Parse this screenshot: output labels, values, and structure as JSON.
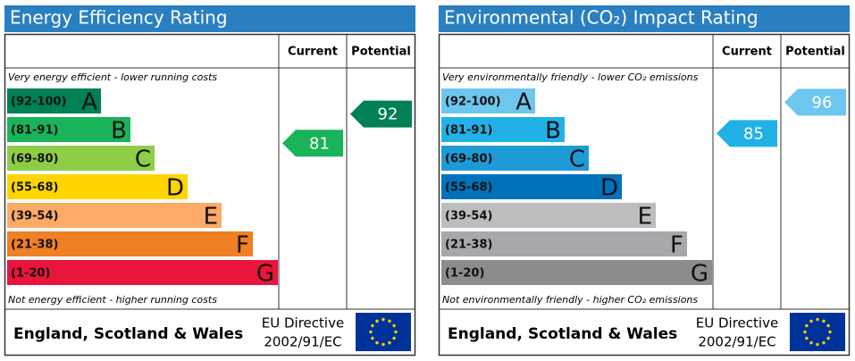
{
  "chart_data": [
    {
      "type": "epc",
      "title": "Energy Efficiency Rating",
      "columns": [
        "Current",
        "Potential"
      ],
      "top_note": "Very energy efficient - lower running costs",
      "bottom_note": "Not energy efficient - higher running costs",
      "bands": [
        {
          "range": "(92-100)",
          "letter": "A",
          "color": "#008054"
        },
        {
          "range": "(81-91)",
          "letter": "B",
          "color": "#19b459"
        },
        {
          "range": "(69-80)",
          "letter": "C",
          "color": "#8dce46"
        },
        {
          "range": "(55-68)",
          "letter": "D",
          "color": "#ffd500"
        },
        {
          "range": "(39-54)",
          "letter": "E",
          "color": "#fcaa65"
        },
        {
          "range": "(21-38)",
          "letter": "F",
          "color": "#ef8023"
        },
        {
          "range": "(1-20)",
          "letter": "G",
          "color": "#e9153b"
        }
      ],
      "current": 81,
      "potential": 92,
      "footer": {
        "region": "England, Scotland & Wales",
        "directive": [
          "EU Directive",
          "2002/91/EC"
        ]
      }
    },
    {
      "type": "epc",
      "title": "Environmental (CO₂) Impact Rating",
      "columns": [
        "Current",
        "Potential"
      ],
      "top_note": "Very environmentally friendly - lower CO₂ emissions",
      "bottom_note": "Not environmentally friendly - higher CO₂ emissions",
      "bands": [
        {
          "range": "(92-100)",
          "letter": "A",
          "color": "#6dc6ee"
        },
        {
          "range": "(81-91)",
          "letter": "B",
          "color": "#22b1e6"
        },
        {
          "range": "(69-80)",
          "letter": "C",
          "color": "#1e9bd7"
        },
        {
          "range": "(55-68)",
          "letter": "D",
          "color": "#0072bb"
        },
        {
          "range": "(39-54)",
          "letter": "E",
          "color": "#bbbdbf"
        },
        {
          "range": "(21-38)",
          "letter": "F",
          "color": "#a6a8ab"
        },
        {
          "range": "(1-20)",
          "letter": "G",
          "color": "#8a8c8e"
        }
      ],
      "current": 85,
      "potential": 96,
      "footer": {
        "region": "England, Scotland & Wales",
        "directive": [
          "EU Directive",
          "2002/91/EC"
        ]
      }
    }
  ]
}
